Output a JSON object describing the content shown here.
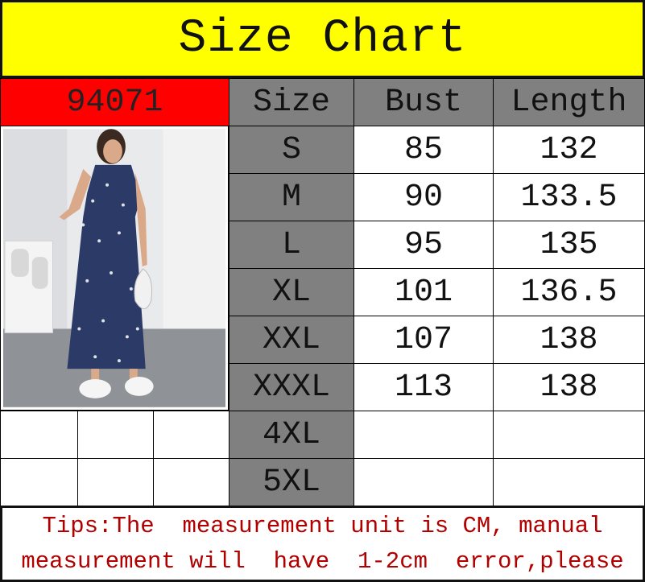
{
  "title": "Size Chart",
  "product_code": "94071",
  "headers": [
    "Size",
    "Bust",
    "Length"
  ],
  "rows": [
    {
      "size": "S",
      "bust": "85",
      "length": "132"
    },
    {
      "size": "M",
      "bust": "90",
      "length": "133.5"
    },
    {
      "size": "L",
      "bust": "95",
      "length": "135"
    },
    {
      "size": "XL",
      "bust": "101",
      "length": "136.5"
    },
    {
      "size": "XXL",
      "bust": "107",
      "length": "138"
    },
    {
      "size": "XXXL",
      "bust": "113",
      "length": "138"
    },
    {
      "size": "4XL",
      "bust": "",
      "length": ""
    },
    {
      "size": "5XL",
      "bust": "",
      "length": ""
    }
  ],
  "tips": {
    "line1": "Tips:The  measurement unit is CM, manual",
    "line2": "measurement will  have  1-2cm  error,please"
  },
  "colors": {
    "title_bg": "#ffff00",
    "code_bg": "#ff0000",
    "header_bg": "#808080",
    "tips_text": "#b00000"
  }
}
